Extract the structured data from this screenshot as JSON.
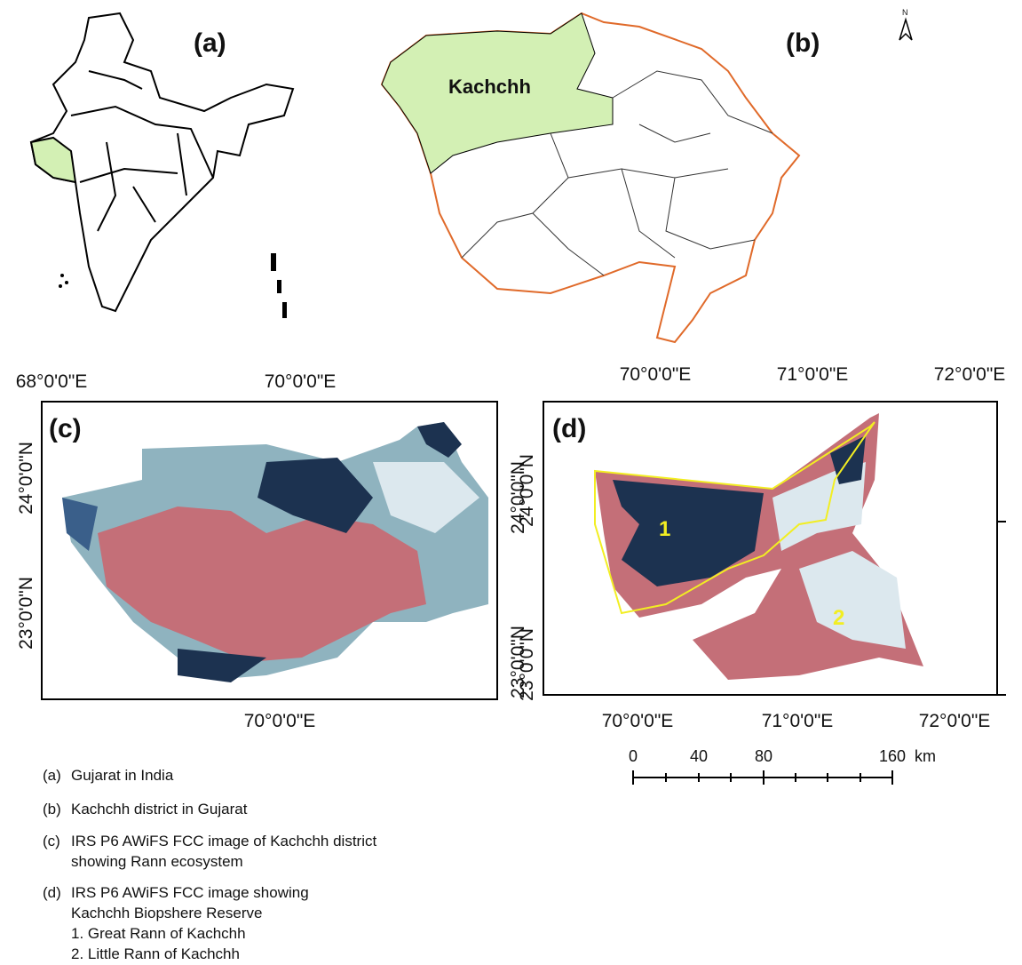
{
  "panels": {
    "a": {
      "label": "(a)"
    },
    "b": {
      "label": "(b)",
      "district": "Kachchh",
      "north": "N"
    },
    "c": {
      "label": "(c)",
      "top_ticks": [
        "68°0'0\"E",
        "70°0'0\"E"
      ],
      "bottom_ticks": [
        "70°0'0\"E"
      ],
      "left_ticks": [
        "24°0'0\"N",
        "23°0'0\"N"
      ],
      "right_ticks": [
        "24°0'0\"N",
        "23°0'0\"N"
      ]
    },
    "d": {
      "label": "(d)",
      "top_ticks": [
        "70°0'0\"E",
        "71°0'0\"E",
        "72°0'0\"E"
      ],
      "bottom_ticks": [
        "70°0'0\"E",
        "71°0'0\"E",
        "72°0'0\"E"
      ],
      "left_ticks": [
        "24°0'0\"N",
        "23°0'0\"N"
      ],
      "markers": [
        "1",
        "2"
      ]
    }
  },
  "scale_bar": {
    "labels": [
      "0",
      "40",
      "80",
      "160"
    ],
    "unit": "km"
  },
  "captions": [
    {
      "marker": "(a)",
      "lines": [
        "Gujarat in India"
      ]
    },
    {
      "marker": "(b)",
      "lines": [
        "Kachchh district in Gujarat"
      ]
    },
    {
      "marker": "(c)",
      "lines": [
        "IRS P6 AWiFS FCC image of Kachchh district",
        "showing Rann ecosystem"
      ]
    },
    {
      "marker": "(d)",
      "lines": [
        "IRS P6 AWiFS FCC image showing",
        "Kachchh Biopshere Reserve",
        "1. Great Rann of Kachchh",
        "2. Little Rann of Kachchh"
      ]
    }
  ]
}
